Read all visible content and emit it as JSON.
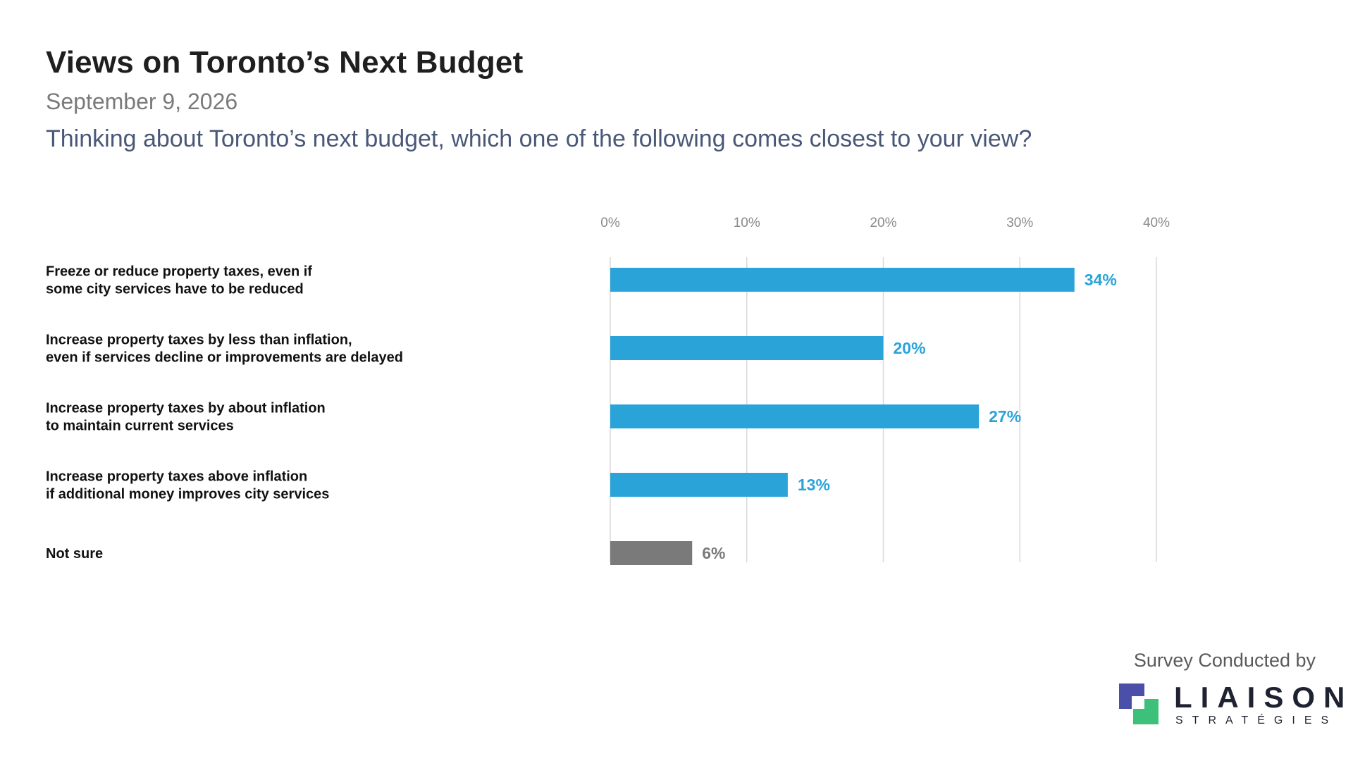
{
  "header": {
    "title": "Views on Toronto’s Next Budget",
    "date": "September 9, 2026",
    "question": "Thinking about Toronto’s next budget, which one of the following comes closest to your view?"
  },
  "chart_data": {
    "type": "bar",
    "orientation": "horizontal",
    "categories": [
      [
        "Freeze or reduce property taxes, even if",
        "some city services have to be reduced"
      ],
      [
        "Increase property taxes by less than inflation,",
        "even if services decline or improvements are delayed"
      ],
      [
        "Increase property taxes by about inflation",
        "to maintain current services"
      ],
      [
        "Increase property taxes above inflation",
        "if additional money improves city services"
      ],
      [
        "Not sure"
      ]
    ],
    "values": [
      34,
      20,
      27,
      13,
      6
    ],
    "value_labels": [
      "34%",
      "20%",
      "27%",
      "13%",
      "6%"
    ],
    "bar_colors": [
      "#2aa3d9",
      "#2aa3d9",
      "#2aa3d9",
      "#2aa3d9",
      "#7a7a7a"
    ],
    "xlim": [
      0,
      40
    ],
    "xticks": [
      0,
      10,
      20,
      30,
      40
    ],
    "xtick_labels": [
      "0%",
      "10%",
      "20%",
      "30%",
      "40%"
    ],
    "grid": true,
    "axis_position": "top"
  },
  "footer": {
    "credit": "Survey Conducted by",
    "logo_word": "LIAISON",
    "logo_sub": "STRATÉGIES",
    "logo_colors": [
      "#4b4fa8",
      "#3cc07a"
    ]
  }
}
